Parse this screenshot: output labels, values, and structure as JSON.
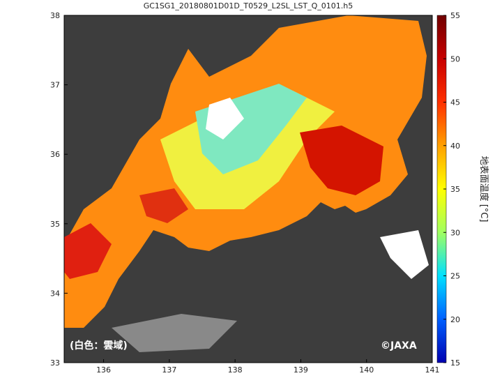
{
  "chart_data": {
    "type": "map",
    "title": "GC1SG1_20180801D01D_T0529_L2SL_LST_Q_0101.h5",
    "xlim": [
      135.4,
      141
    ],
    "xticks": [
      136,
      137,
      138,
      139,
      140,
      141
    ],
    "ylim": [
      33,
      38
    ],
    "yticks": [
      33,
      34,
      35,
      36,
      37,
      38
    ],
    "background": "#3d3d3d",
    "colorbar": {
      "label": "地表面温度 [°C]",
      "lim": [
        15,
        55
      ],
      "ticks": [
        15,
        20,
        25,
        30,
        35,
        40,
        45,
        50,
        55
      ],
      "colors": [
        "#0000b0",
        "#0060ff",
        "#00e0ff",
        "#a0ff60",
        "#ffff00",
        "#ffa000",
        "#ff3000",
        "#c80000",
        "#700000"
      ]
    },
    "annotations": [
      "(白色：雲域)",
      "©JAXA"
    ]
  }
}
